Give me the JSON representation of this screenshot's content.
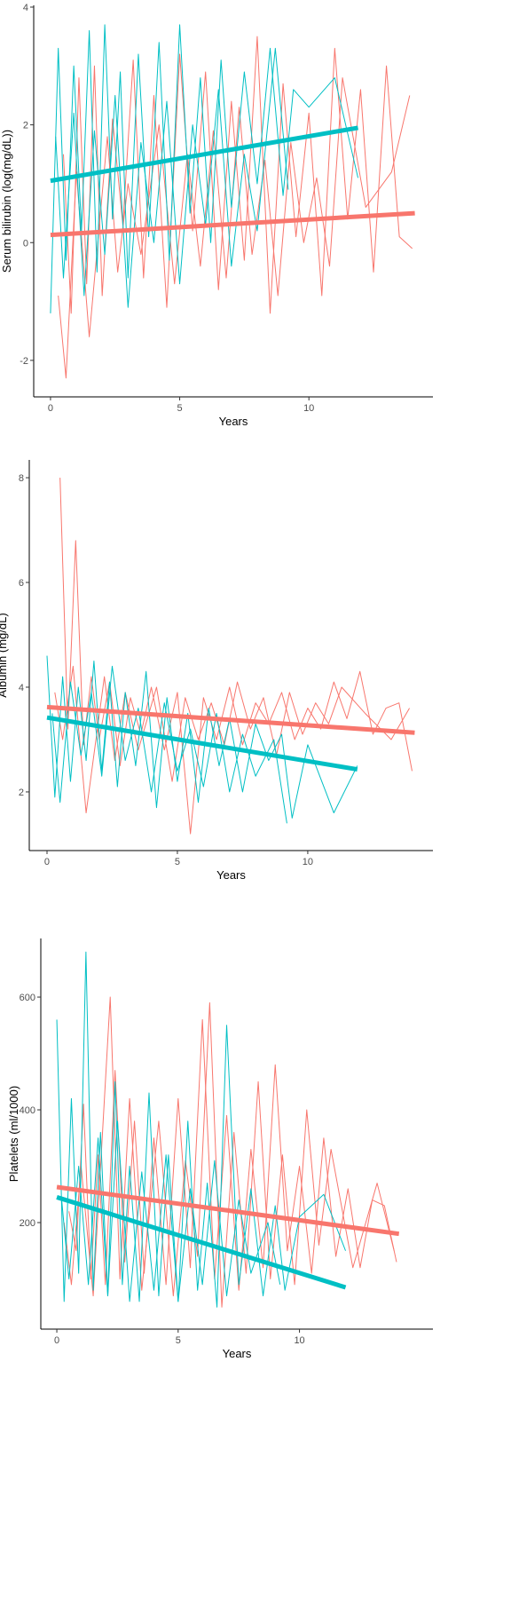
{
  "chart_data": [
    {
      "type": "line",
      "xlabel": "Years",
      "ylabel": "Serum bilirubin (log(mg/dL))",
      "xlim": [
        -0.65,
        14.8
      ],
      "ylim": [
        -2.62,
        4.03
      ],
      "xticks": [
        0,
        5,
        10
      ],
      "yticks": [
        -2,
        0,
        2,
        4
      ],
      "series": [
        {
          "color": "#F8766D",
          "x": [
            0.5,
            0.8,
            1.1,
            1.4,
            1.7,
            2.0,
            2.4,
            2.8,
            3.2,
            3.6,
            4.0,
            4.5,
            5.0,
            5.5,
            6.0,
            6.5,
            7.0,
            7.5,
            8.0,
            8.5,
            9.0,
            9.5,
            10.0,
            10.5,
            11.0,
            11.5,
            12.0,
            12.5,
            13.0,
            13.5,
            14.0
          ],
          "values": [
            1.5,
            -1.2,
            2.8,
            -0.7,
            3.0,
            -0.9,
            2.1,
            0.3,
            3.1,
            -0.6,
            2.5,
            -1.1,
            3.2,
            0.2,
            2.9,
            -0.8,
            2.4,
            -0.3,
            3.5,
            -1.2,
            2.7,
            0.1,
            2.2,
            -0.9,
            3.3,
            0.4,
            2.6,
            -0.5,
            3.0,
            0.1,
            -0.1
          ]
        },
        {
          "color": "#F8766D",
          "x": [
            0.3,
            0.6,
            1.0,
            1.5,
            2.2,
            2.6,
            3.0,
            3.5,
            4.2,
            4.8,
            5.3,
            5.8,
            6.3,
            6.8,
            7.3,
            7.8,
            8.3,
            8.8,
            9.3,
            9.8,
            10.3,
            10.8,
            11.3,
            12.2,
            13.2,
            13.9
          ],
          "values": [
            -0.9,
            -2.3,
            1.2,
            -1.6,
            1.8,
            -0.5,
            1.0,
            -0.2,
            2.0,
            -0.7,
            1.5,
            -0.4,
            1.9,
            -0.6,
            2.3,
            -0.2,
            1.4,
            -0.9,
            1.7,
            0.0,
            1.1,
            -0.4,
            2.8,
            0.6,
            1.2,
            2.5
          ]
        },
        {
          "color": "#00BFC4",
          "x": [
            0,
            0.3,
            0.6,
            0.9,
            1.2,
            1.5,
            1.8,
            2.1,
            2.4,
            2.7,
            3.0,
            3.4,
            3.8,
            4.2,
            4.6,
            5.0,
            5.4,
            5.8,
            6.2,
            6.6,
            7.0,
            7.5,
            8.0,
            8.5,
            9.0,
            9.4,
            10.0,
            11.0,
            11.9
          ],
          "values": [
            -1.2,
            3.3,
            -0.3,
            3.0,
            0.2,
            3.6,
            -0.5,
            3.7,
            0.4,
            2.9,
            -0.6,
            3.2,
            0.1,
            3.4,
            -0.3,
            3.7,
            0.5,
            2.8,
            0.0,
            3.1,
            0.6,
            2.9,
            1.0,
            3.3,
            0.8,
            2.6,
            2.3,
            2.8,
            1.1
          ]
        },
        {
          "color": "#00BFC4",
          "x": [
            0.2,
            0.5,
            0.9,
            1.3,
            1.7,
            2.1,
            2.5,
            3.0,
            3.5,
            4.0,
            4.5,
            5.0,
            5.5,
            6.0,
            6.5,
            7.0,
            7.5,
            8.0,
            8.7,
            9.2
          ],
          "values": [
            1.8,
            -0.6,
            2.2,
            -0.9,
            1.9,
            -0.2,
            2.5,
            -1.1,
            1.7,
            0.0,
            2.4,
            -0.7,
            2.0,
            0.3,
            2.6,
            -0.4,
            1.5,
            0.2,
            3.3,
            0.9
          ]
        }
      ],
      "trend_lines": [
        {
          "color": "#F8766D",
          "x": [
            0,
            14.1
          ],
          "values": [
            0.13,
            0.5
          ]
        },
        {
          "color": "#00BFC4",
          "x": [
            0,
            11.9
          ],
          "values": [
            1.05,
            1.95
          ]
        }
      ]
    },
    {
      "type": "line",
      "xlabel": "Years",
      "ylabel": "Albumin (mg/dL)",
      "xlim": [
        -0.68,
        14.8
      ],
      "ylim": [
        0.88,
        8.34
      ],
      "xticks": [
        0,
        5,
        10
      ],
      "yticks": [
        2,
        4,
        6,
        8
      ],
      "series": [
        {
          "color": "#F8766D",
          "x": [
            0.5,
            0.8,
            1.1,
            1.4,
            1.7,
            2.0,
            2.4,
            2.8,
            3.2,
            3.6,
            4.0,
            4.5,
            5.0,
            5.5,
            6.0,
            6.5,
            7.0,
            7.5,
            8.0,
            8.5,
            9.0,
            9.5,
            10.0,
            10.5,
            11.0,
            11.5,
            12.0,
            12.5,
            13.0,
            13.5,
            14.0
          ],
          "values": [
            8.0,
            3.2,
            6.8,
            2.9,
            4.2,
            3.0,
            4.1,
            2.5,
            3.8,
            3.1,
            4.0,
            2.8,
            3.9,
            1.2,
            3.8,
            3.0,
            4.0,
            2.9,
            3.7,
            3.3,
            3.9,
            3.0,
            3.6,
            3.2,
            4.1,
            3.4,
            4.3,
            3.1,
            3.6,
            3.7,
            2.4
          ]
        },
        {
          "color": "#F8766D",
          "x": [
            0.3,
            0.6,
            1.0,
            1.5,
            2.2,
            2.6,
            3.0,
            3.5,
            4.2,
            4.8,
            5.3,
            5.8,
            6.3,
            6.8,
            7.3,
            7.8,
            8.3,
            8.8,
            9.3,
            9.8,
            10.3,
            10.8,
            11.3,
            12.2,
            13.2,
            13.9
          ],
          "values": [
            3.9,
            3.0,
            4.4,
            1.6,
            4.2,
            2.6,
            3.9,
            2.8,
            4.0,
            2.2,
            3.8,
            3.0,
            3.7,
            2.9,
            4.1,
            3.2,
            3.8,
            2.7,
            3.9,
            3.1,
            3.7,
            3.3,
            4.0,
            3.5,
            3.0,
            3.6
          ]
        },
        {
          "color": "#00BFC4",
          "x": [
            0,
            0.3,
            0.6,
            0.9,
            1.2,
            1.5,
            1.8,
            2.1,
            2.4,
            2.7,
            3.0,
            3.4,
            3.8,
            4.2,
            4.6,
            5.0,
            5.4,
            5.8,
            6.2,
            6.6,
            7.0,
            7.5,
            8.0,
            8.5,
            9.0,
            9.4,
            10.0,
            11.0,
            11.9
          ],
          "values": [
            4.6,
            1.9,
            4.2,
            2.2,
            4.0,
            2.6,
            4.5,
            2.4,
            4.1,
            2.1,
            3.9,
            2.5,
            4.3,
            1.7,
            3.8,
            2.2,
            3.5,
            1.8,
            3.6,
            2.5,
            3.4,
            2.0,
            3.3,
            2.6,
            3.1,
            1.5,
            2.9,
            1.6,
            2.5
          ]
        },
        {
          "color": "#00BFC4",
          "x": [
            0.2,
            0.5,
            0.9,
            1.3,
            1.7,
            2.1,
            2.5,
            3.0,
            3.5,
            4.0,
            4.5,
            5.0,
            5.5,
            6.0,
            6.5,
            7.0,
            7.5,
            8.0,
            8.7,
            9.2
          ],
          "values": [
            3.5,
            1.8,
            4.1,
            2.7,
            3.9,
            2.3,
            4.4,
            2.6,
            3.6,
            2.0,
            3.7,
            2.4,
            3.2,
            2.1,
            3.5,
            2.0,
            3.1,
            2.3,
            3.0,
            1.4
          ]
        }
      ],
      "trend_lines": [
        {
          "color": "#F8766D",
          "x": [
            0,
            14.1
          ],
          "values": [
            3.62,
            3.13
          ]
        },
        {
          "color": "#00BFC4",
          "x": [
            0,
            11.9
          ],
          "values": [
            3.42,
            2.43
          ]
        }
      ]
    },
    {
      "type": "line",
      "xlabel": "Years",
      "ylabel": "Platelets (ml/1000)",
      "xlim": [
        -0.66,
        15.5
      ],
      "ylim": [
        11,
        704
      ],
      "xticks": [
        0,
        5,
        10
      ],
      "yticks": [
        200,
        400,
        600
      ],
      "series": [
        {
          "color": "#F8766D",
          "x": [
            0.5,
            0.8,
            1.1,
            1.4,
            1.7,
            2.0,
            2.4,
            2.8,
            3.2,
            3.6,
            4.0,
            4.5,
            5.0,
            5.5,
            6.0,
            6.5,
            7.0,
            7.5,
            8.0,
            8.5,
            9.0,
            9.5,
            10.0,
            10.5,
            11.0,
            11.5,
            12.0,
            12.5,
            13.0,
            13.5,
            14.0
          ],
          "values": [
            220,
            150,
            410,
            100,
            320,
            90,
            470,
            130,
            380,
            110,
            350,
            90,
            420,
            120,
            560,
            100,
            390,
            80,
            330,
            120,
            480,
            150,
            300,
            110,
            350,
            140,
            260,
            120,
            240,
            230,
            130
          ]
        },
        {
          "color": "#F8766D",
          "x": [
            0.3,
            0.6,
            1.0,
            1.5,
            2.2,
            2.6,
            3.0,
            3.5,
            4.2,
            4.8,
            5.3,
            5.8,
            6.3,
            6.8,
            7.3,
            7.8,
            8.3,
            8.8,
            9.3,
            9.8,
            10.3,
            10.8,
            11.3,
            12.2,
            13.2,
            13.9
          ],
          "values": [
            200,
            90,
            300,
            70,
            600,
            100,
            420,
            80,
            380,
            70,
            310,
            140,
            590,
            50,
            360,
            110,
            450,
            100,
            320,
            90,
            400,
            160,
            330,
            120,
            270,
            150
          ]
        },
        {
          "color": "#00BFC4",
          "x": [
            0,
            0.3,
            0.6,
            0.9,
            1.2,
            1.5,
            1.8,
            2.1,
            2.4,
            2.7,
            3.0,
            3.4,
            3.8,
            4.2,
            4.6,
            5.0,
            5.4,
            5.8,
            6.2,
            6.6,
            7.0,
            7.5,
            8.0,
            8.5,
            9.0,
            9.4,
            10.0,
            11.0,
            11.9
          ],
          "values": [
            560,
            60,
            420,
            110,
            680,
            80,
            360,
            70,
            450,
            90,
            300,
            60,
            430,
            70,
            320,
            60,
            380,
            80,
            270,
            50,
            550,
            90,
            260,
            70,
            230,
            80,
            210,
            250,
            150
          ]
        },
        {
          "color": "#00BFC4",
          "x": [
            0.2,
            0.5,
            0.9,
            1.3,
            1.7,
            2.1,
            2.5,
            3.0,
            3.5,
            4.0,
            4.5,
            5.0,
            5.5,
            6.0,
            6.5,
            7.0,
            7.5,
            8.0,
            8.7,
            9.2
          ],
          "values": [
            240,
            100,
            300,
            90,
            350,
            70,
            380,
            60,
            290,
            80,
            320,
            60,
            260,
            90,
            310,
            70,
            240,
            110,
            200,
            90
          ]
        }
      ],
      "trend_lines": [
        {
          "color": "#F8766D",
          "x": [
            0,
            14.1
          ],
          "values": [
            263,
            180
          ]
        },
        {
          "color": "#00BFC4",
          "x": [
            0,
            11.9
          ],
          "values": [
            245,
            85
          ]
        }
      ]
    }
  ]
}
